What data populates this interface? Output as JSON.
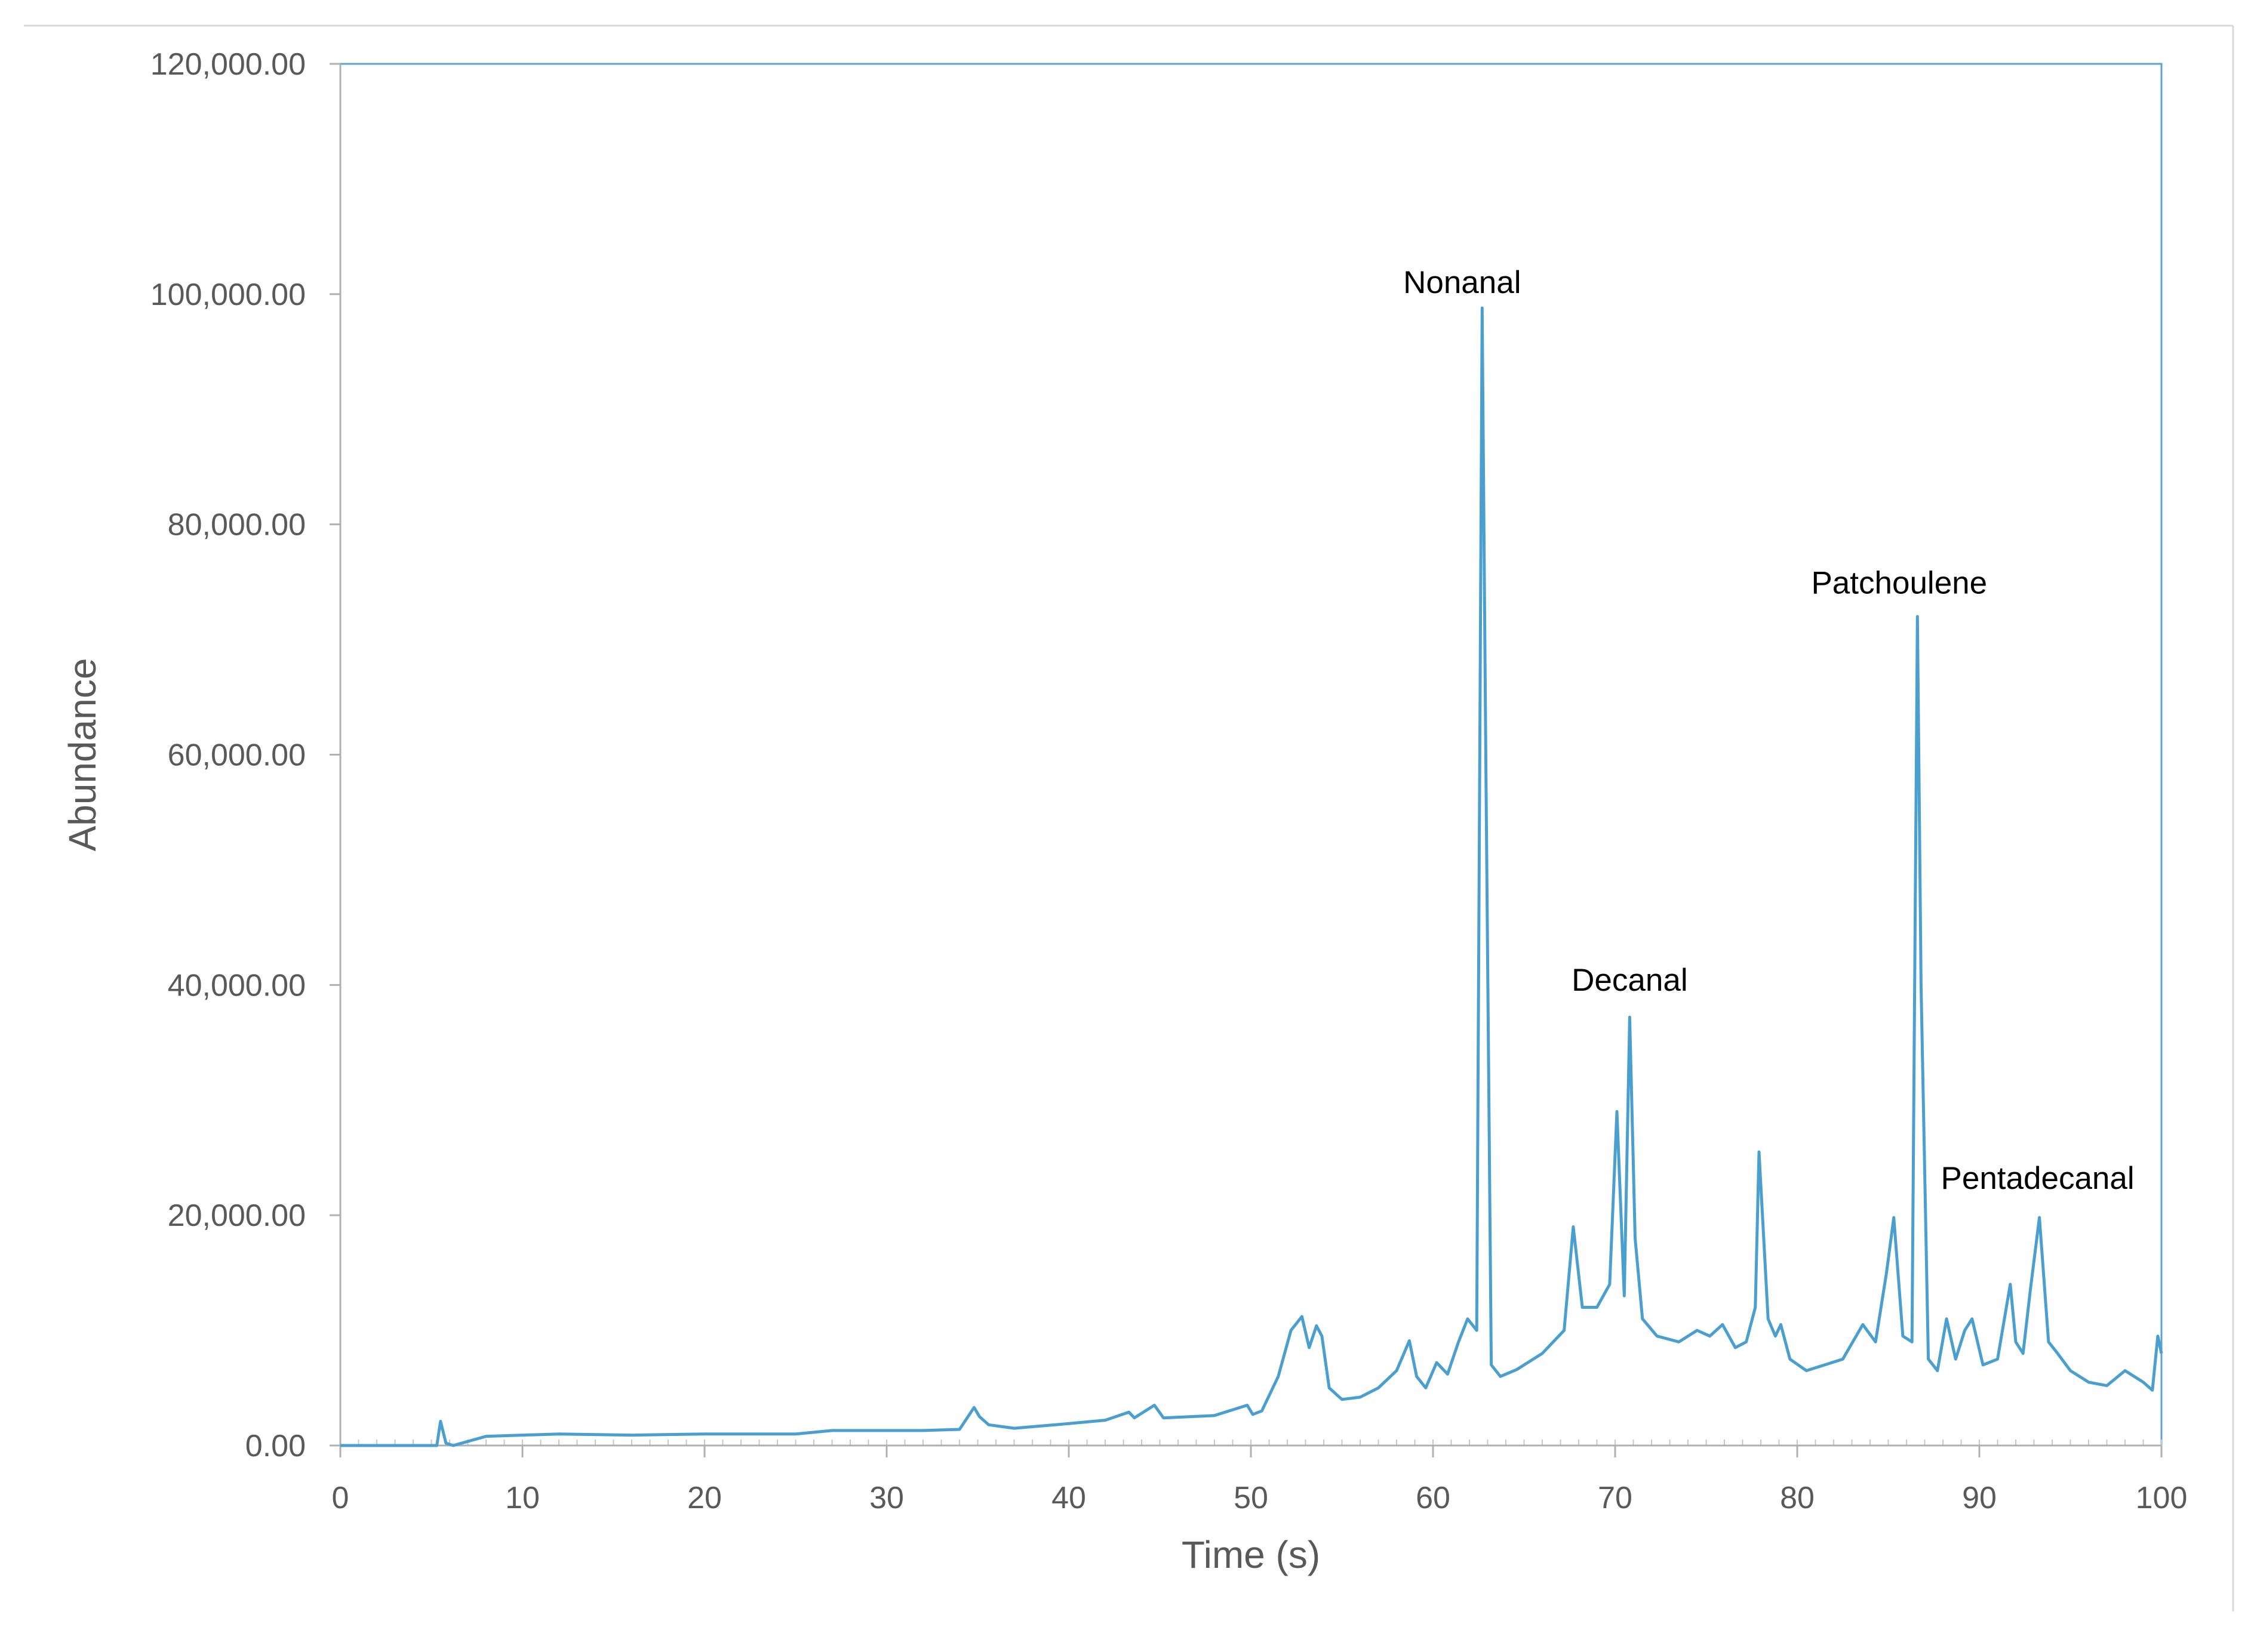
{
  "chart_data": {
    "type": "line",
    "title": "",
    "xlabel": "Time (s)",
    "ylabel": "Abundance",
    "xlim": [
      0,
      100
    ],
    "ylim": [
      0,
      120000
    ],
    "x_ticks": [
      "0",
      "10",
      "20",
      "30",
      "40",
      "50",
      "60",
      "70",
      "80",
      "90",
      "100"
    ],
    "y_ticks": [
      "0.00",
      "20,000.00",
      "40,000.00",
      "60,000.00",
      "80,000.00",
      "100,000.00",
      "120,000.00"
    ],
    "x_minor_step": 1,
    "grid": false,
    "legend": "none",
    "colors": {
      "line": "#4a9fcf",
      "plot_frame": "#5aa3d0",
      "axis": "#b0b0b0"
    },
    "series": [
      {
        "x": [
          0,
          5.3,
          5.5,
          5.8,
          6.2,
          8,
          12,
          16,
          20,
          25,
          27,
          30,
          32,
          34,
          34.8,
          35.1,
          35.6,
          37,
          40,
          42,
          43.3,
          43.6,
          44.2,
          44.7,
          45.2,
          48,
          49.8,
          50.1,
          50.6,
          51.5,
          52.2,
          52.8,
          53.2,
          53.6,
          53.9,
          54.3,
          55,
          56,
          57,
          58,
          58.7,
          59.1,
          59.6,
          60.2,
          60.8,
          61.4,
          61.9,
          62.4,
          62.7,
          62.9,
          63.2,
          63.7,
          64.6,
          66,
          67.2,
          67.7,
          68.2,
          69,
          69.7,
          70.1,
          70.5,
          70.8,
          71.1,
          71.5,
          72.3,
          73.5,
          74.5,
          75.2,
          75.9,
          76.6,
          77.2,
          77.7,
          77.9,
          78.4,
          78.8,
          79.1,
          79.6,
          80.5,
          81.5,
          82.5,
          83.6,
          84.3,
          84.9,
          85.3,
          85.8,
          86.3,
          86.6,
          86.8,
          87.2,
          87.7,
          88.2,
          88.7,
          89.2,
          89.6,
          90.2,
          91,
          91.7,
          92,
          92.4,
          92.8,
          93.3,
          93.8,
          94.3,
          95,
          96,
          97,
          98,
          99,
          99.5,
          99.8,
          100
        ],
        "y": [
          0,
          0,
          2100,
          200,
          0,
          800,
          1000,
          900,
          1000,
          1000,
          1300,
          1300,
          1300,
          1400,
          3300,
          2500,
          1800,
          1500,
          1900,
          2200,
          2900,
          2400,
          3000,
          3500,
          2400,
          2600,
          3500,
          2700,
          3000,
          6000,
          10000,
          11200,
          8500,
          10400,
          9500,
          5000,
          4000,
          4200,
          5000,
          6500,
          9100,
          6000,
          5000,
          7200,
          6200,
          9000,
          11000,
          10000,
          98800,
          60000,
          7000,
          6000,
          6600,
          8000,
          10000,
          19000,
          12000,
          12000,
          14000,
          29000,
          13000,
          37200,
          18000,
          11000,
          9500,
          9000,
          10000,
          9500,
          10500,
          8500,
          9000,
          12000,
          25500,
          11000,
          9500,
          10500,
          7500,
          6500,
          7000,
          7500,
          10500,
          9000,
          15000,
          19800,
          9500,
          9000,
          72000,
          40000,
          7500,
          6500,
          11000,
          7500,
          10000,
          11000,
          7000,
          7500,
          14000,
          9000,
          8000,
          13500,
          19800,
          9000,
          8000,
          6500,
          5500,
          5200,
          6500,
          5500,
          4800,
          9500,
          8000
        ]
      }
    ],
    "annotations": [
      {
        "text": "Nonanal",
        "x": 61.6,
        "y": 100100
      },
      {
        "text": "Decanal",
        "x": 70.8,
        "y": 39500
      },
      {
        "text": "Patchoulene",
        "x": 85.6,
        "y": 74000
      },
      {
        "text": "Pentadecanal",
        "x": 93.2,
        "y": 22300
      }
    ]
  }
}
